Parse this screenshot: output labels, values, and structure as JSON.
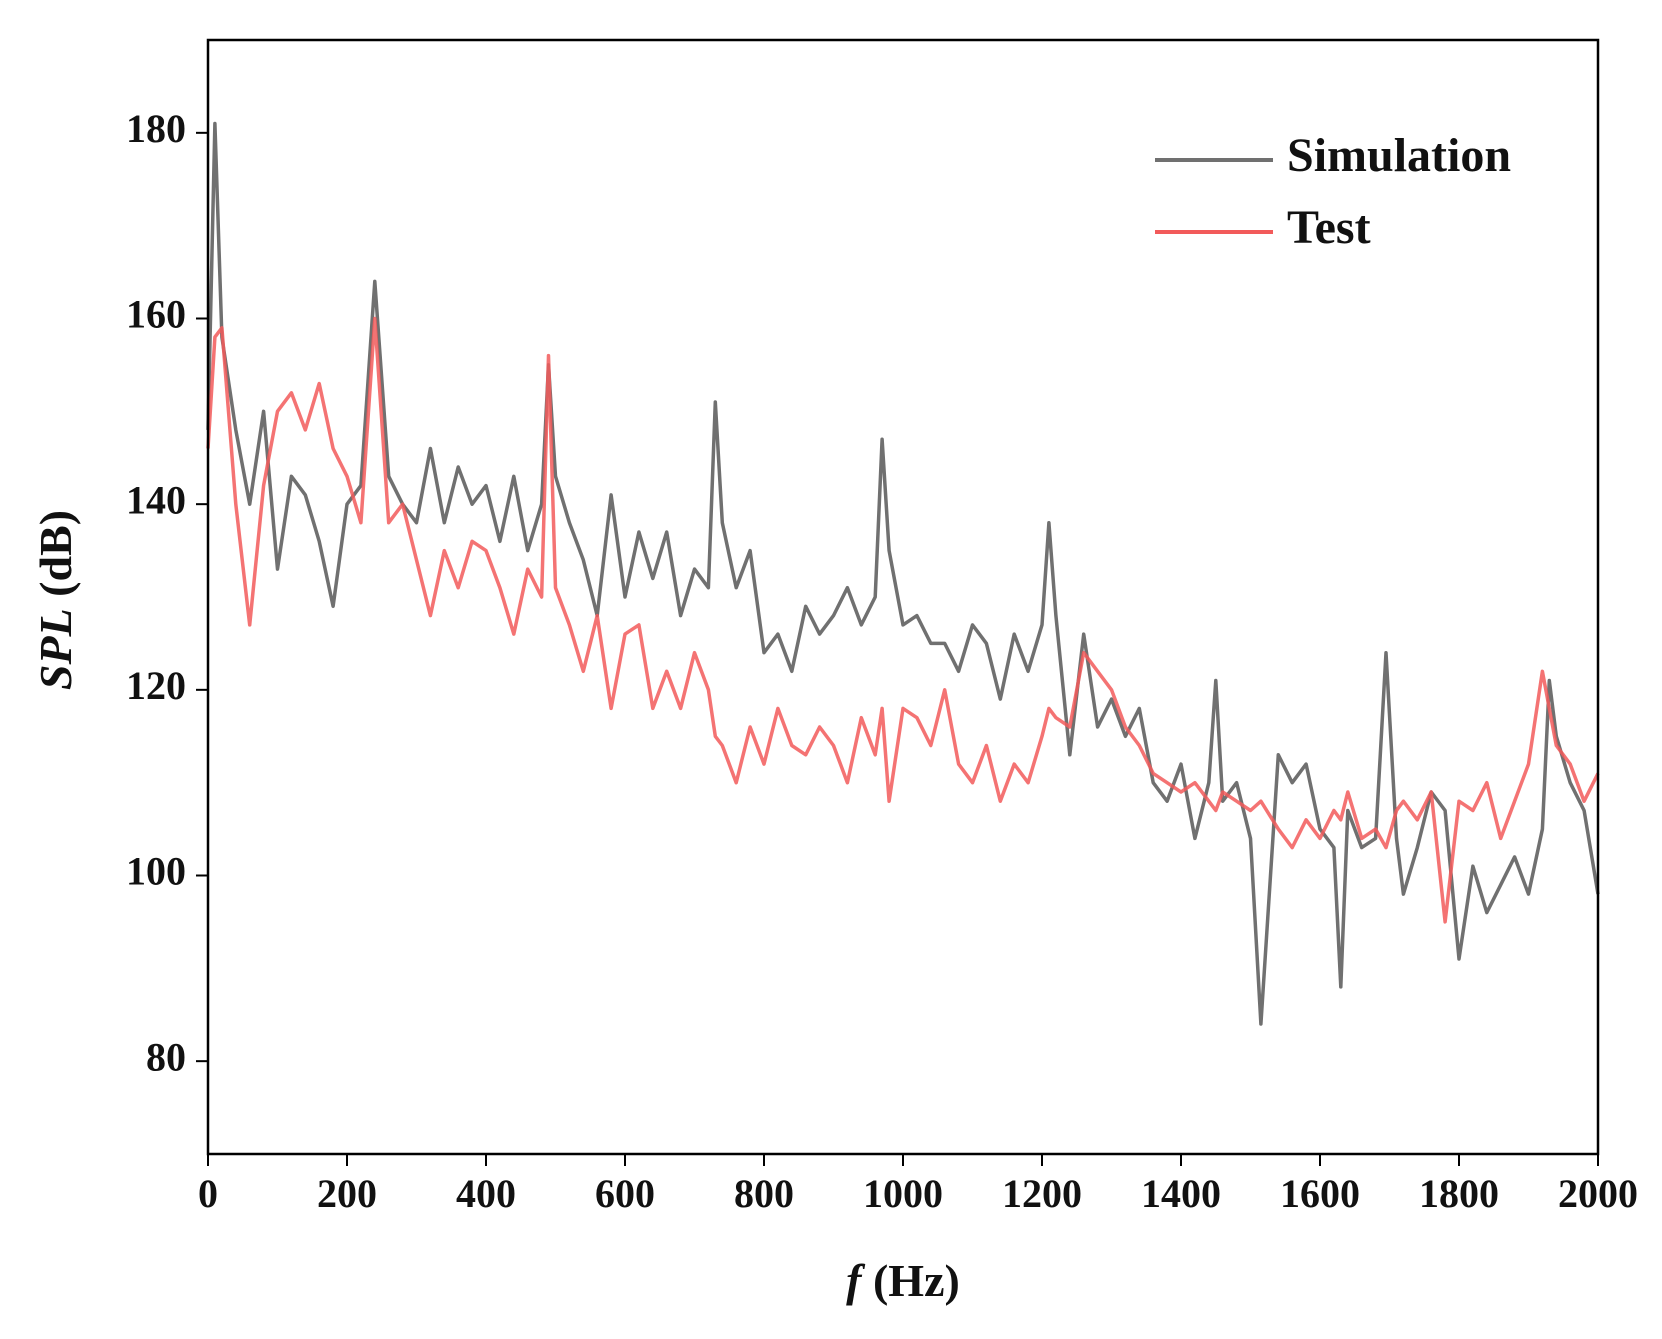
{
  "chart_data": {
    "type": "line",
    "x": [
      0,
      10,
      20,
      40,
      60,
      80,
      100,
      120,
      140,
      160,
      180,
      200,
      220,
      240,
      260,
      280,
      300,
      320,
      340,
      360,
      380,
      400,
      420,
      440,
      460,
      480,
      490,
      500,
      520,
      540,
      560,
      580,
      600,
      620,
      640,
      660,
      680,
      700,
      720,
      730,
      740,
      760,
      780,
      800,
      820,
      840,
      860,
      880,
      900,
      920,
      940,
      960,
      970,
      980,
      1000,
      1020,
      1040,
      1060,
      1080,
      1100,
      1120,
      1140,
      1160,
      1180,
      1200,
      1210,
      1220,
      1240,
      1260,
      1280,
      1300,
      1320,
      1340,
      1360,
      1380,
      1400,
      1420,
      1440,
      1450,
      1460,
      1480,
      1500,
      1515,
      1540,
      1560,
      1580,
      1600,
      1620,
      1630,
      1640,
      1660,
      1680,
      1695,
      1710,
      1720,
      1740,
      1760,
      1780,
      1800,
      1820,
      1840,
      1860,
      1880,
      1900,
      1920,
      1930,
      1940,
      1960,
      1980,
      2000
    ],
    "series": [
      {
        "name": "Simulation",
        "color": "#707070",
        "values": [
          148,
          181,
          158,
          148,
          140,
          150,
          133,
          143,
          141,
          136,
          129,
          140,
          142,
          164,
          143,
          140,
          138,
          146,
          138,
          144,
          140,
          142,
          136,
          143,
          135,
          140,
          155,
          143,
          138,
          134,
          128,
          141,
          130,
          137,
          132,
          137,
          128,
          133,
          131,
          151,
          138,
          131,
          135,
          124,
          126,
          122,
          129,
          126,
          128,
          131,
          127,
          130,
          147,
          135,
          127,
          128,
          125,
          125,
          122,
          127,
          125,
          119,
          126,
          122,
          127,
          138,
          128,
          113,
          126,
          116,
          119,
          115,
          118,
          110,
          108,
          112,
          104,
          110,
          121,
          108,
          110,
          104,
          84,
          113,
          110,
          112,
          105,
          103,
          88,
          107,
          103,
          104,
          124,
          104,
          98,
          103,
          109,
          107,
          91,
          101,
          96,
          99,
          102,
          98,
          105,
          121,
          115,
          110,
          107,
          98
        ]
      },
      {
        "name": "Test",
        "color": "#f25a5a",
        "values": [
          146,
          158,
          159,
          140,
          127,
          142,
          150,
          152,
          148,
          153,
          146,
          143,
          138,
          160,
          138,
          140,
          134,
          128,
          135,
          131,
          136,
          135,
          131,
          126,
          133,
          130,
          156,
          131,
          127,
          122,
          128,
          118,
          126,
          127,
          118,
          122,
          118,
          124,
          120,
          115,
          114,
          110,
          116,
          112,
          118,
          114,
          113,
          116,
          114,
          110,
          117,
          113,
          118,
          108,
          118,
          117,
          114,
          120,
          112,
          110,
          114,
          108,
          112,
          110,
          115,
          118,
          117,
          116,
          124,
          122,
          120,
          116,
          114,
          111,
          110,
          109,
          110,
          108,
          107,
          109,
          108,
          107,
          108,
          105,
          103,
          106,
          104,
          107,
          106,
          109,
          104,
          105,
          103,
          107,
          108,
          106,
          109,
          95,
          108,
          107,
          110,
          104,
          108,
          112,
          122,
          118,
          114,
          112,
          108,
          111
        ]
      }
    ],
    "xlabel": {
      "var": "f",
      "unit": "(Hz)"
    },
    "ylabel": {
      "var": "SPL",
      "unit": "(dB)"
    },
    "xlim": [
      0,
      2000
    ],
    "xticks": [
      0,
      200,
      400,
      600,
      800,
      1000,
      1200,
      1400,
      1600,
      1800,
      2000
    ],
    "ylim": [
      70,
      190
    ],
    "yticks": [
      80,
      100,
      120,
      140,
      160,
      180
    ],
    "grid": false,
    "legend": "upper right"
  }
}
